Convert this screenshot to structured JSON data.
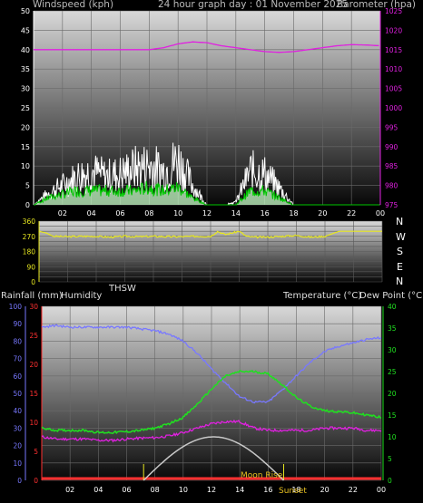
{
  "header": {
    "left_axis": "Windspeed (kph)",
    "title": "24 hour graph day : 01 November 2025",
    "right_axis": "Barometer (hpa)"
  },
  "direction_panel": {
    "thsw_label": "THSW",
    "compass": [
      "N",
      "W",
      "S",
      "E",
      "N"
    ]
  },
  "temp_panel": {
    "left_labels": [
      "Rainfall (mm)",
      "Humidity"
    ],
    "right_labels": [
      "Temperature (°C)",
      "Dew Point (°C)"
    ],
    "moon_rise": "Moon Rise",
    "sunset": "Sunset"
  },
  "colors": {
    "barometer": "#e020e0",
    "gust": "#ffffff",
    "avg_wind": "#00c800",
    "wind_fill": "#c8ffc8",
    "direction": "#e8e820",
    "humidity": "#7878ff",
    "temperature": "#20e020",
    "dew_point": "#e020e0",
    "solar": "#c8c8c8",
    "rain": "#ff3030",
    "marker": "#e8e820"
  },
  "chart_data": [
    {
      "type": "line",
      "name": "wind-barometer",
      "x_tick_labels": [
        "02",
        "04",
        "06",
        "08",
        "10",
        "12",
        "14",
        "16",
        "18",
        "20",
        "22",
        "00"
      ],
      "left_axis": {
        "label": "Windspeed (kph)",
        "ylim": [
          0,
          50
        ],
        "ticks": [
          0,
          5,
          10,
          15,
          20,
          25,
          30,
          35,
          40,
          45,
          50
        ]
      },
      "right_axis": {
        "label": "Barometer (hpa)",
        "ylim": [
          975,
          1025
        ],
        "ticks": [
          975,
          980,
          985,
          990,
          995,
          1000,
          1005,
          1010,
          1015,
          1020,
          1025
        ]
      },
      "x": [
        0,
        1,
        2,
        3,
        4,
        5,
        6,
        7,
        8,
        9,
        10,
        11,
        12,
        13,
        14,
        15,
        16,
        17,
        18,
        19,
        20,
        21,
        22,
        23,
        24
      ],
      "barometer": [
        1015,
        1015,
        1015,
        1015,
        1015,
        1015,
        1015,
        1015,
        1015,
        1015.5,
        1016.5,
        1017,
        1016.8,
        1016,
        1015.5,
        1015,
        1014.5,
        1014.3,
        1014.5,
        1015,
        1015.5,
        1016,
        1016.3,
        1016.2,
        1016
      ],
      "gust": [
        0,
        4,
        7,
        10,
        12,
        10,
        11,
        13,
        14,
        12,
        16,
        7,
        0,
        0,
        1,
        12,
        11,
        6,
        0,
        0,
        0,
        0,
        0,
        0,
        0
      ],
      "avg_wind": [
        0,
        2,
        3,
        4,
        4,
        4,
        4,
        4,
        5,
        4,
        5,
        2,
        0,
        0,
        0,
        4,
        4,
        2,
        0,
        0,
        0,
        0,
        0,
        0,
        0
      ],
      "grid": true
    },
    {
      "type": "line",
      "name": "wind-direction",
      "left_axis": {
        "ylim": [
          0,
          360
        ],
        "ticks": [
          0,
          30,
          60,
          90,
          120,
          150,
          180,
          210,
          240,
          270,
          300,
          330,
          360
        ]
      },
      "x": [
        0,
        0.5,
        1,
        2,
        3,
        4,
        5,
        6,
        7,
        8,
        9,
        10,
        11,
        12,
        12.5,
        13,
        14,
        14.5,
        15,
        16,
        17,
        18,
        19,
        20,
        21,
        22,
        23,
        24
      ],
      "direction": [
        300,
        290,
        270,
        268,
        270,
        270,
        265,
        270,
        268,
        270,
        268,
        268,
        270,
        270,
        300,
        280,
        300,
        270,
        265,
        265,
        270,
        275,
        265,
        270,
        300,
        300,
        300,
        300
      ],
      "grid": true
    },
    {
      "type": "line",
      "name": "temperature-humidity",
      "x_tick_labels": [
        "02",
        "04",
        "06",
        "08",
        "10",
        "12",
        "14",
        "16",
        "18",
        "20",
        "22",
        "00"
      ],
      "rain_axis": {
        "label": "Rainfall (mm)",
        "ylim": [
          0,
          30
        ],
        "ticks": [
          0,
          5,
          10,
          15,
          20,
          25,
          30
        ]
      },
      "humidity_axis": {
        "label": "Humidity",
        "ylim": [
          0,
          100
        ],
        "ticks": [
          0,
          10,
          20,
          30,
          40,
          50,
          60,
          70,
          80,
          90,
          100
        ]
      },
      "temp_axis": {
        "label": "Temperature (°C)",
        "ylim": [
          0,
          40
        ],
        "ticks": [
          0,
          5,
          10,
          15,
          20,
          25,
          30,
          35,
          40
        ]
      },
      "x": [
        0,
        1,
        2,
        3,
        4,
        5,
        6,
        7,
        8,
        9,
        10,
        11,
        12,
        13,
        14,
        15,
        16,
        17,
        18,
        19,
        20,
        21,
        22,
        23,
        24
      ],
      "humidity": [
        88,
        89,
        88,
        88,
        88,
        88,
        88,
        87,
        86,
        84,
        80,
        73,
        64,
        56,
        48,
        45,
        45,
        52,
        60,
        68,
        74,
        77,
        79,
        81,
        82
      ],
      "temperature": [
        12,
        11.5,
        11.5,
        11.5,
        11,
        11,
        11.2,
        11.5,
        12,
        13,
        14.5,
        17.5,
        21,
        24,
        25,
        25,
        24.5,
        22,
        19,
        17,
        16,
        15.8,
        15.5,
        15,
        14.5
      ],
      "dew_point": [
        10,
        9.5,
        9.5,
        9.5,
        9.2,
        9.2,
        9.5,
        9.7,
        9.8,
        10.2,
        11,
        12,
        13,
        13.5,
        13.5,
        12,
        11.5,
        11.5,
        11.5,
        11.5,
        12,
        12,
        12,
        11.5,
        11.5
      ],
      "solar": [
        0,
        0,
        0,
        0,
        0,
        0,
        0,
        0,
        0,
        2,
        5,
        8,
        10,
        10,
        7,
        3,
        0,
        0,
        0,
        0,
        0,
        0,
        0,
        0,
        0
      ],
      "sunrise_hour": 7.2,
      "sunset_hour": 17.1,
      "grid": true
    }
  ]
}
